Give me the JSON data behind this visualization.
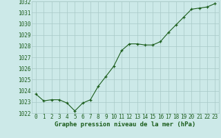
{
  "x": [
    0,
    1,
    2,
    3,
    4,
    5,
    6,
    7,
    8,
    9,
    10,
    11,
    12,
    13,
    14,
    15,
    16,
    17,
    18,
    19,
    20,
    21,
    22,
    23
  ],
  "y": [
    1023.7,
    1023.1,
    1023.2,
    1023.2,
    1022.9,
    1022.2,
    1022.9,
    1023.2,
    1024.4,
    1025.3,
    1026.2,
    1027.6,
    1028.2,
    1028.2,
    1028.1,
    1028.1,
    1028.4,
    1029.2,
    1029.9,
    1030.6,
    1031.3,
    1031.4,
    1031.5,
    1031.8
  ],
  "ylim": [
    1022,
    1032
  ],
  "yticks": [
    1022,
    1023,
    1024,
    1025,
    1026,
    1027,
    1028,
    1029,
    1030,
    1031,
    1032
  ],
  "xticks": [
    0,
    1,
    2,
    3,
    4,
    5,
    6,
    7,
    8,
    9,
    10,
    11,
    12,
    13,
    14,
    15,
    16,
    17,
    18,
    19,
    20,
    21,
    22,
    23
  ],
  "xlabel": "Graphe pression niveau de la mer (hPa)",
  "line_color": "#1a5c1a",
  "marker_color": "#1a5c1a",
  "bg_color": "#cce9e8",
  "grid_color": "#a8c8c6",
  "xlabel_color": "#1a5c1a",
  "xlabel_fontsize": 6.5,
  "tick_fontsize": 5.5,
  "xlim": [
    -0.5,
    23.5
  ]
}
